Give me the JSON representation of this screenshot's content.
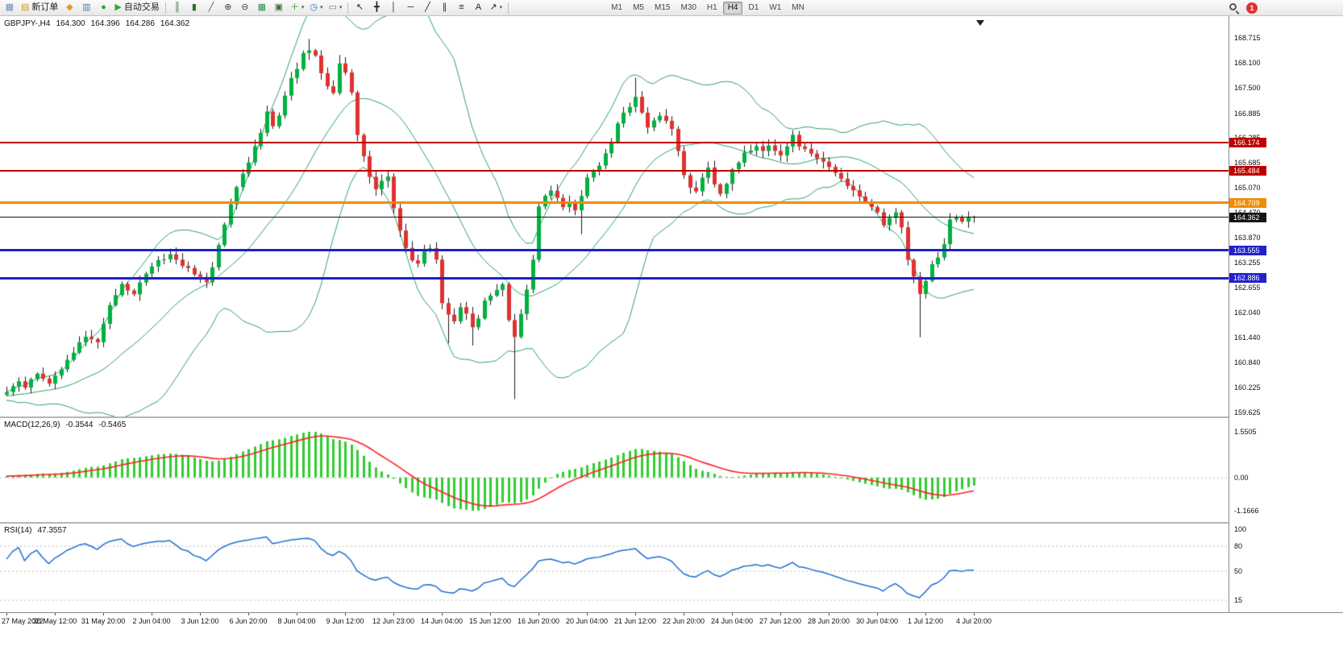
{
  "toolbar": {
    "badge": "1",
    "items": [
      {
        "name": "new-chart-button",
        "glyph": "▦",
        "color": "#6b8cc7"
      },
      {
        "name": "new-order-button",
        "label": "新订单",
        "glyph": "▤",
        "color": "#c9a227"
      },
      {
        "name": "market-watch-button",
        "glyph": "◆",
        "color": "#d7a021"
      },
      {
        "name": "data-window-button",
        "glyph": "▥",
        "color": "#4f79b5"
      },
      {
        "name": "navigator-button",
        "glyph": "●",
        "color": "#3f9d44"
      },
      {
        "name": "autotrading-button",
        "label": "自动交易",
        "glyph": "▶",
        "color": "#33aa33"
      },
      {
        "name": "toolbar-separator-1",
        "sep": true
      },
      {
        "name": "bars-chart-button",
        "glyph": "║",
        "color": "#3b6e3b"
      },
      {
        "name": "candles-chart-button",
        "glyph": "▮",
        "color": "#2f6e2f"
      },
      {
        "name": "line-chart-button",
        "glyph": "╱",
        "color": "#3b5e8e"
      },
      {
        "name": "zoom-in-button",
        "glyph": "⊕",
        "color": "#444444"
      },
      {
        "name": "zoom-out-button",
        "glyph": "⊖",
        "color": "#444444"
      },
      {
        "name": "tile-windows-button",
        "glyph": "▦",
        "color": "#2f8f4e"
      },
      {
        "name": "cascade-windows-button",
        "glyph": "▣",
        "color": "#44702f"
      },
      {
        "name": "indicators-button",
        "glyph": "＋",
        "color": "#2a9d2a",
        "caret": true
      },
      {
        "name": "periods-button",
        "glyph": "◷",
        "color": "#2f6eb5",
        "caret": true
      },
      {
        "name": "templates-button",
        "glyph": "▭",
        "color": "#777777",
        "caret": true
      },
      {
        "name": "toolbar-separator-2",
        "sep": true
      },
      {
        "name": "cursor-button",
        "glyph": "↖",
        "color": "#222222"
      },
      {
        "name": "crosshair-button",
        "glyph": "╋",
        "color": "#222222"
      },
      {
        "name": "vertical-line-button",
        "glyph": "│",
        "color": "#222222"
      },
      {
        "name": "horizontal-line-button",
        "glyph": "─",
        "color": "#222222"
      },
      {
        "name": "trendline-button",
        "glyph": "╱",
        "color": "#222222"
      },
      {
        "name": "channel-button",
        "glyph": "∥",
        "color": "#222222"
      },
      {
        "name": "fibonacci-button",
        "glyph": "≡",
        "color": "#222222"
      },
      {
        "name": "text-button",
        "glyph": "A",
        "color": "#222222"
      },
      {
        "name": "arrows-button",
        "glyph": "↗",
        "color": "#222222",
        "caret": true
      },
      {
        "name": "toolbar-separator-3",
        "sep": true
      }
    ],
    "timeframes": [
      {
        "label": "M1"
      },
      {
        "label": "M5"
      },
      {
        "label": "M15"
      },
      {
        "label": "M30"
      },
      {
        "label": "H1"
      },
      {
        "label": "H4",
        "active": true
      },
      {
        "label": "D1"
      },
      {
        "label": "W1"
      },
      {
        "label": "MN"
      }
    ]
  },
  "chart": {
    "type": "candlestick",
    "symbol_line": {
      "symbol": "GBPJPY-,H4",
      "open": "164.300",
      "high": "164.396",
      "low": "164.286",
      "close": "164.362"
    },
    "last_close": 164.362,
    "colors": {
      "up": "#00b140",
      "down": "#e03131",
      "wick": "#1a1a1a",
      "band": "#2e9e6b",
      "hist": "#32cd32",
      "signal": "#ff2020",
      "rsi": "#1e6fd0",
      "level": "#bdbdbd"
    },
    "price_axis_labels": [
      "168.715",
      "168.100",
      "167.500",
      "166.885",
      "166.285",
      "165.685",
      "165.070",
      "164.470",
      "163.870",
      "163.255",
      "162.655",
      "162.040",
      "161.440",
      "160.840",
      "160.225",
      "159.625"
    ],
    "hlines": [
      {
        "price": 166.174,
        "label": "166.174",
        "color": "#c00000",
        "width": 2
      },
      {
        "price": 165.484,
        "label": "165.484",
        "color": "#c00000",
        "width": 2
      },
      {
        "price": 164.709,
        "label": "164.709",
        "color": "#f08c00",
        "width": 3
      },
      {
        "price": 164.362,
        "label": "164.362",
        "color": "#151515",
        "width": 1
      },
      {
        "price": 163.555,
        "label": "163.555",
        "color": "#2020cc",
        "width": 3
      },
      {
        "price": 162.886,
        "label": "162.886",
        "color": "#2020cc",
        "width": 3
      }
    ],
    "close_waypoints": [
      [
        0,
        160.1
      ],
      [
        2,
        160.4
      ],
      [
        3,
        160.2
      ],
      [
        5,
        160.6
      ],
      [
        7,
        160.35
      ],
      [
        9,
        160.7
      ],
      [
        11,
        161.1
      ],
      [
        13,
        161.5
      ],
      [
        15,
        161.3
      ],
      [
        17,
        162.2
      ],
      [
        19,
        162.75
      ],
      [
        21,
        162.5
      ],
      [
        23,
        163.0
      ],
      [
        25,
        163.3
      ],
      [
        27,
        163.45
      ],
      [
        29,
        163.2
      ],
      [
        31,
        163.0
      ],
      [
        33,
        162.75
      ],
      [
        34,
        163.1
      ],
      [
        36,
        164.2
      ],
      [
        38,
        165.1
      ],
      [
        40,
        165.7
      ],
      [
        42,
        166.4
      ],
      [
        43,
        166.9
      ],
      [
        44,
        166.6
      ],
      [
        45,
        166.8
      ],
      [
        46,
        167.3
      ],
      [
        47,
        167.7
      ],
      [
        48,
        168.0
      ],
      [
        49,
        168.35
      ],
      [
        50,
        168.45
      ],
      [
        51,
        168.3
      ],
      [
        52,
        167.9
      ],
      [
        53,
        167.5
      ],
      [
        54,
        167.35
      ],
      [
        55,
        168.1
      ],
      [
        56,
        167.9
      ],
      [
        57,
        167.4
      ],
      [
        58,
        166.4
      ],
      [
        59,
        165.8
      ],
      [
        60,
        165.3
      ],
      [
        61,
        165.05
      ],
      [
        62,
        165.25
      ],
      [
        63,
        165.35
      ],
      [
        64,
        164.6
      ],
      [
        65,
        164.0
      ],
      [
        66,
        163.6
      ],
      [
        67,
        163.3
      ],
      [
        68,
        163.2
      ],
      [
        69,
        163.55
      ],
      [
        70,
        163.6
      ],
      [
        71,
        163.35
      ],
      [
        72,
        162.3
      ],
      [
        73,
        162.0
      ],
      [
        74,
        161.85
      ],
      [
        75,
        162.15
      ],
      [
        76,
        162.05
      ],
      [
        77,
        161.65
      ],
      [
        78,
        161.9
      ],
      [
        79,
        162.3
      ],
      [
        80,
        162.45
      ],
      [
        81,
        162.6
      ],
      [
        82,
        162.7
      ],
      [
        83,
        161.9
      ],
      [
        84,
        161.5
      ],
      [
        85,
        162.0
      ],
      [
        86,
        162.6
      ],
      [
        87,
        163.3
      ],
      [
        88,
        164.6
      ],
      [
        89,
        164.85
      ],
      [
        90,
        165.0
      ],
      [
        91,
        164.8
      ],
      [
        92,
        164.6
      ],
      [
        93,
        164.7
      ],
      [
        94,
        164.55
      ],
      [
        95,
        164.9
      ],
      [
        96,
        165.35
      ],
      [
        97,
        165.5
      ],
      [
        98,
        165.6
      ],
      [
        99,
        165.9
      ],
      [
        100,
        166.2
      ],
      [
        101,
        166.6
      ],
      [
        102,
        166.9
      ],
      [
        103,
        167.0
      ],
      [
        104,
        167.25
      ],
      [
        105,
        166.9
      ],
      [
        106,
        166.5
      ],
      [
        107,
        166.7
      ],
      [
        108,
        166.85
      ],
      [
        109,
        166.7
      ],
      [
        110,
        166.5
      ],
      [
        111,
        166.0
      ],
      [
        112,
        165.4
      ],
      [
        113,
        165.1
      ],
      [
        114,
        164.95
      ],
      [
        115,
        165.3
      ],
      [
        116,
        165.55
      ],
      [
        117,
        165.2
      ],
      [
        118,
        164.9
      ],
      [
        119,
        165.2
      ],
      [
        120,
        165.5
      ],
      [
        121,
        165.7
      ],
      [
        122,
        165.9
      ],
      [
        123,
        166.0
      ],
      [
        124,
        166.05
      ],
      [
        125,
        165.95
      ],
      [
        126,
        166.1
      ],
      [
        127,
        166.0
      ],
      [
        128,
        165.9
      ],
      [
        129,
        166.1
      ],
      [
        130,
        166.35
      ],
      [
        131,
        166.1
      ],
      [
        132,
        166.0
      ],
      [
        133,
        165.9
      ],
      [
        134,
        165.8
      ],
      [
        135,
        165.7
      ],
      [
        136,
        165.6
      ],
      [
        137,
        165.45
      ],
      [
        138,
        165.3
      ],
      [
        139,
        165.15
      ],
      [
        140,
        165.0
      ],
      [
        141,
        164.85
      ],
      [
        142,
        164.7
      ],
      [
        143,
        164.6
      ],
      [
        144,
        164.5
      ],
      [
        145,
        164.2
      ],
      [
        147,
        164.45
      ],
      [
        148,
        164.1
      ],
      [
        149,
        163.3
      ],
      [
        150,
        162.9
      ],
      [
        151,
        162.5
      ],
      [
        152,
        162.8
      ],
      [
        153,
        163.2
      ],
      [
        154,
        163.35
      ],
      [
        155,
        163.7
      ],
      [
        156,
        164.3
      ],
      [
        157,
        164.4
      ],
      [
        158,
        164.3
      ],
      [
        159,
        164.35
      ],
      [
        160,
        164.362
      ]
    ],
    "spikes": [
      {
        "i": 50,
        "high": 168.69
      },
      {
        "i": 55,
        "high": 168.3
      },
      {
        "i": 73,
        "low": 161.3
      },
      {
        "i": 77,
        "low": 161.25
      },
      {
        "i": 84,
        "low": 159.95
      },
      {
        "i": 95,
        "low": 163.95
      },
      {
        "i": 104,
        "high": 167.75
      },
      {
        "i": 151,
        "low": 161.45
      }
    ],
    "macd": {
      "label": "MACD(12,26,9)",
      "value1": "-0.3544",
      "value2": "-0.5465",
      "axis_labels": [
        "1.5505",
        "0.00",
        "-1.1666"
      ]
    },
    "rsi": {
      "label": "RSI(14)",
      "value": "47.3557",
      "axis_labels": [
        "100",
        "80",
        "50",
        "15"
      ],
      "levels": [
        80,
        50,
        15
      ]
    },
    "time_labels": [
      "27 May 2022",
      "30 May 12:00",
      "31 May 20:00",
      "2 Jun 04:00",
      "3 Jun 12:00",
      "6 Jun 20:00",
      "8 Jun 04:00",
      "9 Jun 12:00",
      "12 Jun 23:00",
      "14 Jun 04:00",
      "15 Jun 12:00",
      "16 Jun 20:00",
      "20 Jun 04:00",
      "21 Jun 12:00",
      "22 Jun 20:00",
      "24 Jun 04:00",
      "27 Jun 12:00",
      "28 Jun 20:00",
      "30 Jun 04:00",
      "1 Jul 12:00",
      "4 Jul 20:00"
    ]
  }
}
